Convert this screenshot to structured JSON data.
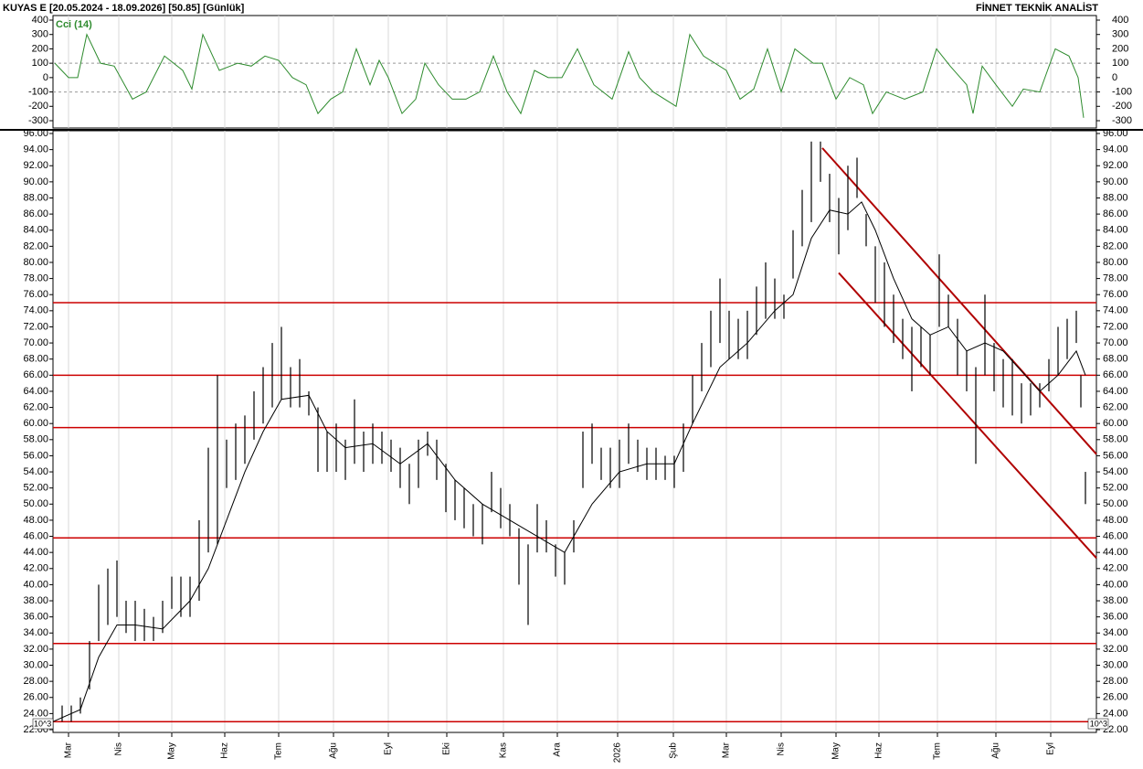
{
  "header": {
    "left": "KUYAS E  [20.05.2024 - 18.09.2026]  [50.85]  [Günlük]",
    "right": "FİNNET TEKNİK ANALİST"
  },
  "chart_data": [
    {
      "type": "line",
      "name": "Cci (14)",
      "color": "#2e8b2e",
      "ylim": [
        -300,
        400
      ],
      "yticks": [
        400,
        300,
        200,
        100,
        0,
        -100,
        -200,
        -300
      ],
      "guides": [
        100,
        -100
      ],
      "x": [
        0.2,
        1.7,
        2.7,
        3.7,
        5.2,
        6.7,
        8.7,
        10.2,
        12.2,
        14.2,
        15.2,
        16.4,
        18.2,
        20.2,
        21.7,
        23.2,
        24.7,
        26.2,
        27.7,
        29,
        30.4,
        31.7,
        33.2,
        34.7,
        35.7,
        36.7,
        38.2,
        39.7,
        40.7,
        42.2,
        43.7,
        45.2,
        46.7,
        48.2,
        49.7,
        51.2,
        52.7,
        54.2,
        55.7,
        57.4,
        59.2,
        61.2,
        63,
        64.2,
        65.7,
        68.2,
        69.7,
        71.2,
        73.7,
        75.2,
        76.7,
        78.2,
        79.7,
        81.2,
        83.2,
        84.2,
        85.7,
        87.2,
        88.7,
        89.7,
        91.2,
        93.2,
        95.2,
        96.7,
        98.2,
        100,
        100.7,
        101.7,
        103.2,
        105,
        106.2,
        108,
        109.7,
        111.2,
        112.2,
        112.8
      ],
      "values": [
        100,
        0,
        0,
        300,
        100,
        80,
        -150,
        -100,
        150,
        50,
        -80,
        300,
        50,
        100,
        80,
        150,
        120,
        0,
        -50,
        -250,
        -150,
        -100,
        200,
        -50,
        120,
        0,
        -250,
        -150,
        100,
        -50,
        -150,
        -150,
        -100,
        150,
        -100,
        -250,
        50,
        0,
        0,
        200,
        -50,
        -150,
        180,
        0,
        -100,
        -200,
        300,
        150,
        50,
        -150,
        -80,
        200,
        -100,
        200,
        100,
        100,
        -150,
        0,
        -50,
        -250,
        -100,
        -150,
        -100,
        200,
        80,
        -50,
        -250,
        80,
        -50,
        -200,
        -80,
        -100,
        200,
        150,
        0,
        -280
      ]
    },
    {
      "type": "ohlc",
      "title_unit": "10^3",
      "xlim": [
        0,
        114.2
      ],
      "ylim": [
        22,
        96
      ],
      "yticks": [
        {
          "value": 22,
          "label": "22.00"
        },
        {
          "value": 24,
          "label": "24.00"
        },
        {
          "value": 26,
          "label": "26.00"
        },
        {
          "value": 28,
          "label": "28.00"
        },
        {
          "value": 30,
          "label": "30.00"
        },
        {
          "value": 32,
          "label": "32.00"
        },
        {
          "value": 34,
          "label": "34.00"
        },
        {
          "value": 36,
          "label": "36.00"
        },
        {
          "value": 38,
          "label": "38.00"
        },
        {
          "value": 40,
          "label": "40.00"
        },
        {
          "value": 42,
          "label": "42.00"
        },
        {
          "value": 44,
          "label": "44.00"
        },
        {
          "value": 46,
          "label": "46.00"
        },
        {
          "value": 48,
          "label": "48.00"
        },
        {
          "value": 50,
          "label": "50.00"
        },
        {
          "value": 52,
          "label": "52.00"
        },
        {
          "value": 54,
          "label": "54.00"
        },
        {
          "value": 56,
          "label": "56.00"
        },
        {
          "value": 58,
          "label": "58.00"
        },
        {
          "value": 60,
          "label": "60.00"
        },
        {
          "value": 62,
          "label": "62.00"
        },
        {
          "value": 64,
          "label": "64.00"
        },
        {
          "value": 66,
          "label": "66.00"
        },
        {
          "value": 68,
          "label": "68.00"
        },
        {
          "value": 70,
          "label": "70.00"
        },
        {
          "value": 72,
          "label": "72.00"
        },
        {
          "value": 74,
          "label": "74.00"
        },
        {
          "value": 76,
          "label": "76.00"
        },
        {
          "value": 78,
          "label": "78.00"
        },
        {
          "value": 80,
          "label": "80.00"
        },
        {
          "value": 82,
          "label": "82.00"
        },
        {
          "value": 84,
          "label": "84.00"
        },
        {
          "value": 86,
          "label": "86.00"
        },
        {
          "value": 88,
          "label": "88.00"
        },
        {
          "value": 90,
          "label": "90.00"
        },
        {
          "value": 92,
          "label": "92.00"
        },
        {
          "value": 94,
          "label": "94.00"
        },
        {
          "value": 96,
          "label": "96.00"
        }
      ],
      "xticks": [
        {
          "value": 1.7,
          "label": "Mar"
        },
        {
          "value": 7.2,
          "label": "Nis"
        },
        {
          "value": 13,
          "label": "May"
        },
        {
          "value": 18.8,
          "label": "Haz"
        },
        {
          "value": 24.7,
          "label": "Tem"
        },
        {
          "value": 30.7,
          "label": "Ağu"
        },
        {
          "value": 36.7,
          "label": "Eyl"
        },
        {
          "value": 43.1,
          "label": "Eki"
        },
        {
          "value": 49.3,
          "label": "Kas"
        },
        {
          "value": 55.2,
          "label": "Ara"
        },
        {
          "value": 61.8,
          "label": "2026"
        },
        {
          "value": 67.9,
          "label": "Şub"
        },
        {
          "value": 73.7,
          "label": "Mar"
        },
        {
          "value": 79.7,
          "label": "Nis"
        },
        {
          "value": 85.7,
          "label": "May"
        },
        {
          "value": 90.4,
          "label": "Haz"
        },
        {
          "value": 96.8,
          "label": "Tem"
        },
        {
          "value": 103.2,
          "label": "Ağu"
        },
        {
          "value": 109.2,
          "label": "Eyl"
        }
      ],
      "x": [
        1,
        2,
        3,
        4,
        5,
        6,
        7,
        8,
        9,
        10,
        11,
        12,
        13,
        14,
        15,
        16,
        17,
        18,
        19,
        20,
        21,
        22,
        23,
        24,
        25,
        26,
        27,
        28,
        29,
        30,
        31,
        32,
        33,
        34,
        35,
        36,
        37,
        38,
        39,
        40,
        41,
        42,
        43,
        44,
        45,
        46,
        47,
        48,
        49,
        50,
        51,
        52,
        53,
        54,
        55,
        56,
        57,
        58,
        59,
        60,
        61,
        62,
        63,
        64,
        65,
        66,
        67,
        68,
        69,
        70,
        71,
        72,
        73,
        74,
        75,
        76,
        77,
        78,
        79,
        80,
        81,
        82,
        83,
        84,
        85,
        86,
        87,
        88,
        89,
        90,
        91,
        92,
        93,
        94,
        95,
        96,
        97,
        98,
        99,
        100,
        101,
        102,
        103,
        104,
        105,
        106,
        107,
        108,
        109,
        110,
        111,
        112,
        112.5,
        113
      ],
      "low": [
        23,
        23,
        24,
        27,
        33,
        35,
        36,
        34,
        33,
        33,
        33,
        34,
        37,
        36,
        36,
        38,
        44,
        45,
        52,
        53,
        55,
        58,
        60,
        62,
        63,
        62,
        62,
        61,
        54,
        54,
        54,
        53,
        55,
        54,
        55,
        55,
        54,
        52,
        50,
        52,
        56,
        53,
        49,
        48,
        47,
        46,
        45,
        49,
        47,
        46,
        40,
        35,
        44,
        44,
        41,
        40,
        44,
        52,
        55,
        53,
        52,
        52,
        55,
        54,
        53,
        53,
        53,
        52,
        54,
        60,
        64,
        67,
        70,
        68,
        68,
        68,
        71,
        73,
        73,
        73,
        78,
        82,
        85,
        90,
        85,
        81,
        84,
        88,
        82,
        75,
        72,
        70,
        68,
        64,
        67,
        66,
        72,
        72,
        66,
        64,
        55,
        66,
        64,
        62,
        61,
        60,
        61,
        62,
        64,
        66,
        68,
        70,
        62,
        50
      ],
      "high": [
        25,
        25,
        26,
        33,
        40,
        42,
        43,
        38,
        38,
        37,
        36,
        38,
        41,
        41,
        41,
        48,
        57,
        66,
        58,
        60,
        61,
        64,
        67,
        70,
        72,
        67,
        68,
        64,
        62,
        59,
        60,
        58,
        63,
        59,
        60,
        59,
        58,
        57,
        55,
        58,
        59,
        58,
        55,
        53,
        52,
        50,
        50,
        54,
        52,
        50,
        47,
        45,
        50,
        48,
        45,
        44,
        48,
        59,
        60,
        57,
        57,
        58,
        60,
        58,
        57,
        57,
        56,
        56,
        60,
        66,
        70,
        74,
        78,
        74,
        73,
        74,
        77,
        80,
        78,
        76,
        84,
        89,
        95,
        95,
        91,
        88,
        92,
        93,
        86,
        82,
        80,
        76,
        73,
        72,
        72,
        71,
        81,
        76,
        73,
        69,
        67,
        76,
        70,
        68,
        68,
        65,
        65,
        65,
        68,
        72,
        73,
        74,
        66,
        54
      ],
      "ma": {
        "x": [
          0,
          3,
          5,
          7,
          9,
          12,
          15,
          17,
          19,
          21,
          23,
          25,
          28,
          30,
          32,
          35,
          38,
          41,
          44,
          47,
          50,
          53,
          56,
          59,
          62,
          65,
          68,
          70,
          73,
          76,
          79,
          81,
          83,
          85,
          87,
          88.5,
          90,
          92,
          94,
          96,
          98,
          100,
          102,
          104,
          106,
          108,
          110,
          112,
          113
        ],
        "values": [
          23,
          24.5,
          31,
          35,
          35,
          34.5,
          38,
          42,
          48,
          54,
          59,
          63,
          63.5,
          59,
          57,
          57.5,
          55,
          57.5,
          53,
          50,
          48,
          46,
          44,
          50,
          54,
          55,
          55,
          60,
          67,
          70,
          74,
          76,
          83,
          86.5,
          86,
          87.5,
          84,
          78,
          73,
          71,
          72,
          69,
          70,
          69,
          66.5,
          64,
          66,
          69,
          66
        ]
      },
      "levels": [
        75,
        66,
        59.5,
        45.8,
        32.7,
        23
      ],
      "channel": [
        {
          "x": [
            84.2,
            114.2
          ],
          "y": [
            94.2,
            56.2
          ]
        },
        {
          "x": [
            86,
            114.2
          ],
          "y": [
            78.7,
            43.3
          ]
        }
      ]
    }
  ]
}
